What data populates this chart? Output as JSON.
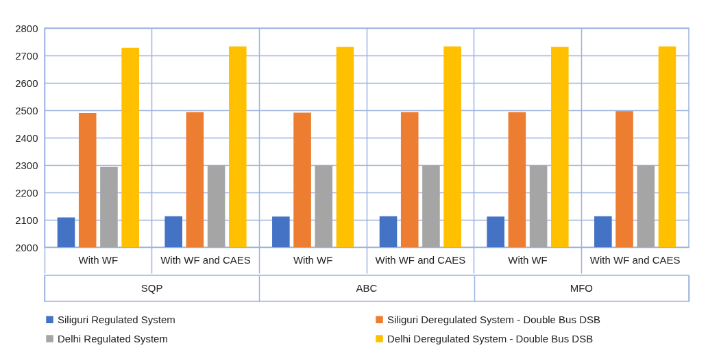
{
  "chart_data": {
    "type": "bar",
    "categories": [
      "With WF",
      "With WF and CAES",
      "With WF",
      "With WF and CAES",
      "With WF",
      "With WF and CAES"
    ],
    "annotations": [
      "SQP",
      "ABC",
      "MFO"
    ],
    "series": [
      {
        "name": "Siliguri Regulated System",
        "color": "#4472c4",
        "values": [
          2109,
          2113,
          2112,
          2113,
          2112,
          2113
        ]
      },
      {
        "name": "Siliguri Deregulated System - Double Bus DSB",
        "color": "#ed7d31",
        "values": [
          2490,
          2493,
          2491,
          2493,
          2493,
          2497
        ]
      },
      {
        "name": "Delhi Regulated System",
        "color": "#a5a5a5",
        "values": [
          2293,
          2298,
          2298,
          2298,
          2298,
          2298
        ]
      },
      {
        "name": "Delhi Deregulated System - Double Bus DSB",
        "color": "#ffc000",
        "values": [
          2728,
          2733,
          2731,
          2733,
          2731,
          2733
        ]
      }
    ],
    "ylim": [
      2000,
      2800
    ],
    "yticks": [
      2000,
      2100,
      2200,
      2300,
      2400,
      2500,
      2600,
      2700,
      2800
    ],
    "grid": true,
    "legend": "bottom"
  }
}
